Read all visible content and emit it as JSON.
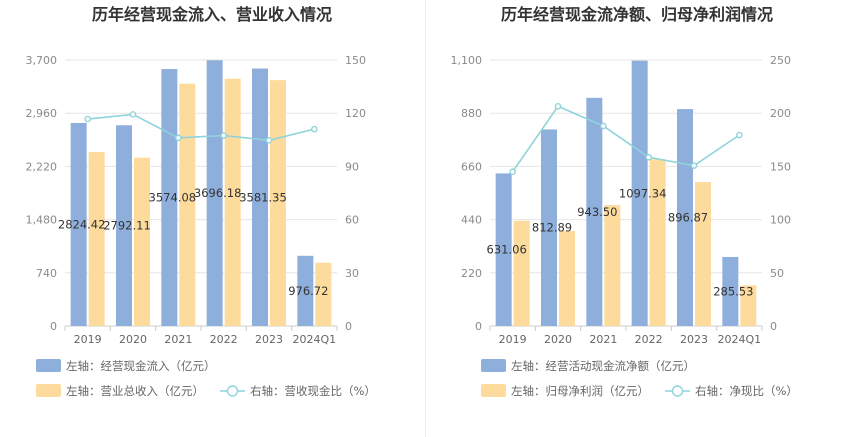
{
  "chart_data": [
    {
      "type": "bar",
      "title": "历年经营现金流入、营业收入情况",
      "categories": [
        "2019",
        "2020",
        "2021",
        "2022",
        "2023",
        "2024Q1"
      ],
      "left_axis": {
        "ticks": [
          "0",
          "740",
          "1,480",
          "2,220",
          "2,960",
          "3,700"
        ],
        "ylim": [
          0,
          3700
        ]
      },
      "right_axis": {
        "ticks": [
          "0",
          "30",
          "60",
          "90",
          "120",
          "150"
        ],
        "ylim": [
          0,
          150
        ]
      },
      "series": [
        {
          "name": "左轴：经营现金流入（亿元）",
          "kind": "bar",
          "axis": "left",
          "color": "#8eaedb",
          "values": [
            2824.42,
            2792.11,
            3574.08,
            3696.18,
            3581.35,
            976.72
          ],
          "labels": [
            "2824.42",
            "2792.11",
            "3574.08",
            "3696.18",
            "3581.35",
            "976.72"
          ]
        },
        {
          "name": "左轴：营业总收入（亿元）",
          "kind": "bar",
          "axis": "left",
          "color": "#fddb9c",
          "values": [
            2420,
            2340,
            3370,
            3440,
            3420,
            880
          ]
        },
        {
          "name": "右轴：营收现金比（%）",
          "kind": "line",
          "axis": "right",
          "color": "#8fd3db",
          "values": [
            116.7,
            119.3,
            106.1,
            107.4,
            104.7,
            111.0
          ]
        }
      ],
      "grid": true,
      "legend": "bottom"
    },
    {
      "type": "bar",
      "title": "历年经营现金流净额、归母净利润情况",
      "categories": [
        "2019",
        "2020",
        "2021",
        "2022",
        "2023",
        "2024Q1"
      ],
      "left_axis": {
        "ticks": [
          "0",
          "220",
          "440",
          "660",
          "880",
          "1,100"
        ],
        "ylim": [
          0,
          1100
        ]
      },
      "right_axis": {
        "ticks": [
          "0",
          "50",
          "100",
          "150",
          "200",
          "250"
        ],
        "ylim": [
          0,
          250
        ]
      },
      "series": [
        {
          "name": "左轴：经营活动现金流净额（亿元）",
          "kind": "bar",
          "axis": "left",
          "color": "#8eaedb",
          "values": [
            631.06,
            812.89,
            943.5,
            1097.34,
            896.87,
            285.53
          ],
          "labels": [
            "631.06",
            "812.89",
            "943.50",
            "1097.34",
            "896.87",
            "285.53"
          ]
        },
        {
          "name": "左轴：归母净利润（亿元）",
          "kind": "bar",
          "axis": "left",
          "color": "#fddb9c",
          "values": [
            435,
            393,
            500,
            690,
            595,
            168
          ]
        },
        {
          "name": "右轴：净现比（%）",
          "kind": "line",
          "axis": "right",
          "color": "#8fd3db",
          "values": [
            145.0,
            206.5,
            188.0,
            158.6,
            150.7,
            179.5
          ]
        }
      ],
      "grid": true,
      "legend": "bottom"
    }
  ]
}
